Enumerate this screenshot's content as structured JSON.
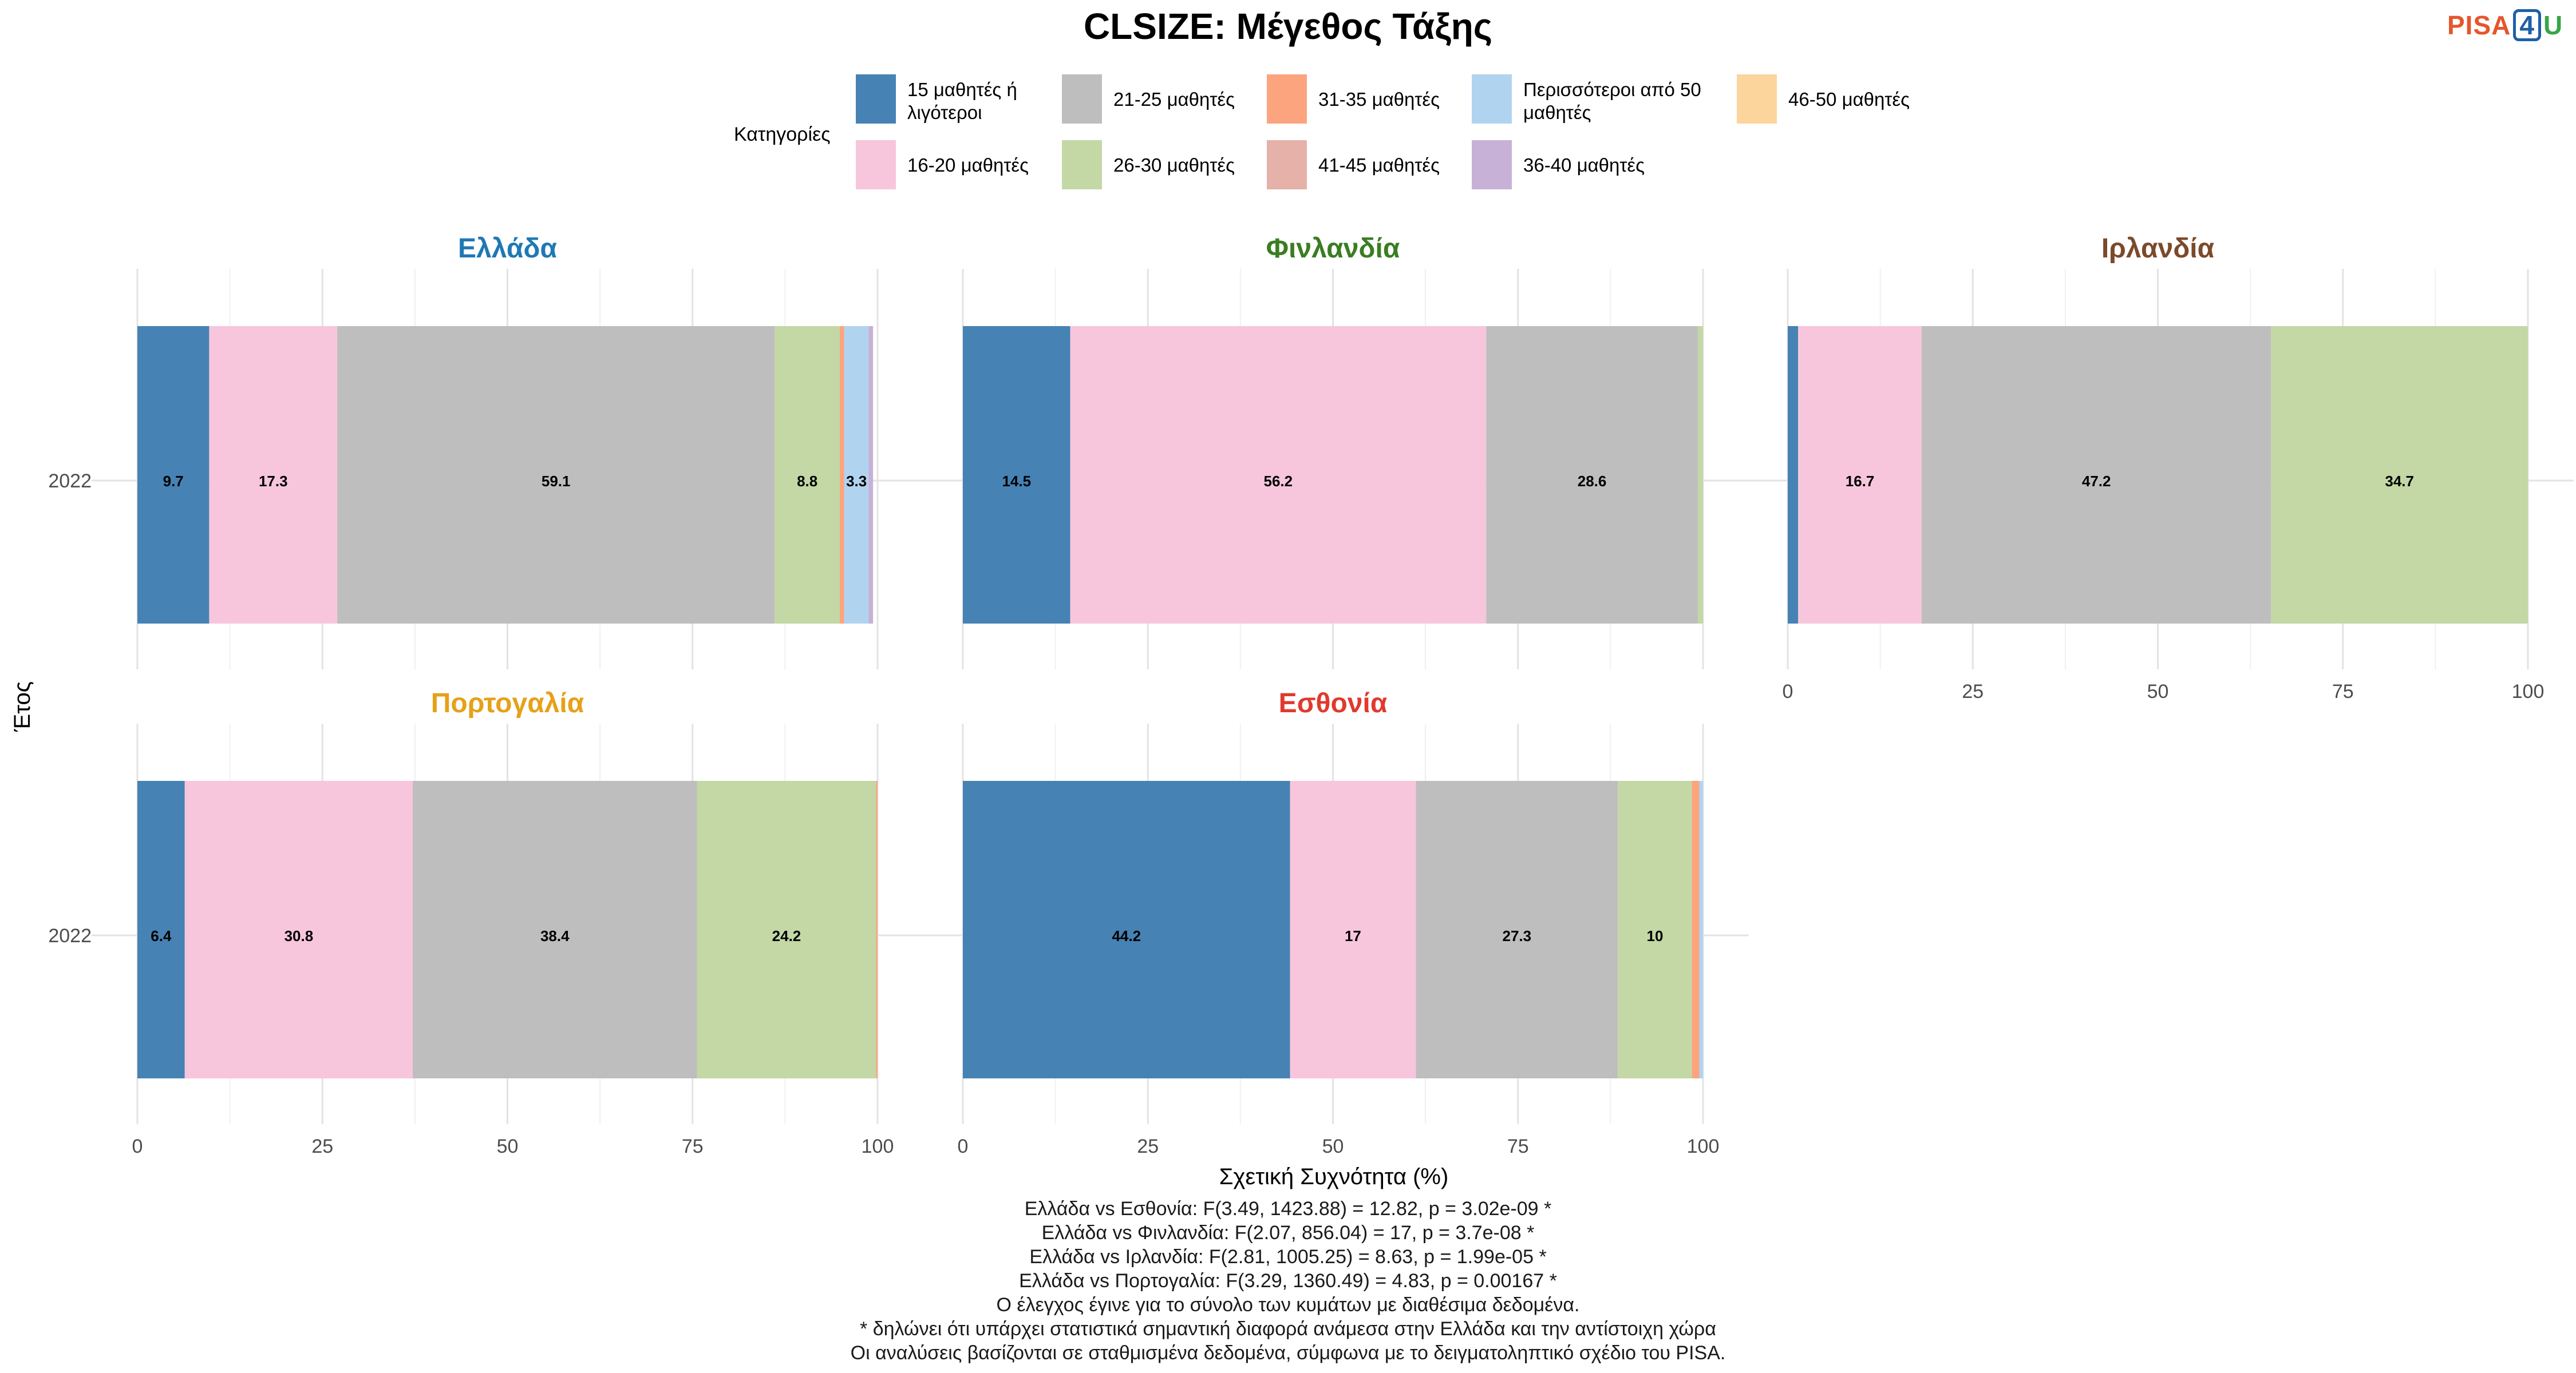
{
  "title": "CLSIZE: Μέγεθος Τάξης",
  "logo": {
    "p": "PISA",
    "four": "4",
    "u": "U"
  },
  "legend": {
    "title": "Κατηγορίες",
    "items": [
      {
        "label": [
          "15 μαθητές ή",
          "λιγότεροι"
        ],
        "color": "#4682b4"
      },
      {
        "label": [
          "21-25 μαθητές"
        ],
        "color": "#bebebe"
      },
      {
        "label": [
          "31-35 μαθητές"
        ],
        "color": "#fca47e"
      },
      {
        "label": [
          "Περισσότεροι από 50",
          "μαθητές"
        ],
        "color": "#b0d4f0"
      },
      {
        "label": [
          "46-50 μαθητές"
        ],
        "color": "#fbd59c"
      },
      {
        "label": [
          "16-20 μαθητές"
        ],
        "color": "#f7c6dc"
      },
      {
        "label": [
          "26-30 μαθητές"
        ],
        "color": "#c3d8a5"
      },
      {
        "label": [
          "41-45 μαθητές"
        ],
        "color": "#e5b1a8"
      },
      {
        "label": [
          "36-40 μαθητές"
        ],
        "color": "#c8b1d6"
      }
    ]
  },
  "chart_data": {
    "type": "bar",
    "orientation": "horizontal-stacked",
    "ylabel": "Έτος",
    "xlabel": "Σχετική Συχνότητα (%)",
    "xlim": [
      0,
      100
    ],
    "xticks": [
      0,
      25,
      50,
      75,
      100
    ],
    "grid": true,
    "legend_position": "top",
    "categories_order": [
      "15 μαθητές ή λιγότεροι",
      "16-20 μαθητές",
      "21-25 μαθητές",
      "26-30 μαθητές",
      "31-35 μαθητές",
      "Περισσότεροι από 50 μαθητές",
      "36-40 μαθητές"
    ],
    "panels": [
      {
        "country": "Ελλάδα",
        "color": "#1f78b4",
        "year": "2022",
        "segments": [
          {
            "category": "15 μαθητές ή λιγότεροι",
            "value": 9.7,
            "color": "#4682b4",
            "label": "9.7"
          },
          {
            "category": "16-20 μαθητές",
            "value": 17.3,
            "color": "#f7c6dc",
            "label": "17.3"
          },
          {
            "category": "21-25 μαθητές",
            "value": 59.1,
            "color": "#bebebe",
            "label": "59.1"
          },
          {
            "category": "26-30 μαθητές",
            "value": 8.8,
            "color": "#c3d8a5",
            "label": "8.8"
          },
          {
            "category": "31-35 μαθητές",
            "value": 0.6,
            "color": "#fca47e",
            "label": ""
          },
          {
            "category": "Περισσότεροι από 50 μαθητές",
            "value": 3.3,
            "color": "#b0d4f0",
            "label": "3.3"
          },
          {
            "category": "36-40 μαθητές",
            "value": 0.6,
            "color": "#c8b1d6",
            "label": ""
          }
        ]
      },
      {
        "country": "Φινλανδία",
        "color": "#3a7d22",
        "year": "2022",
        "segments": [
          {
            "category": "15 μαθητές ή λιγότεροι",
            "value": 14.5,
            "color": "#4682b4",
            "label": "14.5"
          },
          {
            "category": "16-20 μαθητές",
            "value": 56.2,
            "color": "#f7c6dc",
            "label": "56.2"
          },
          {
            "category": "21-25 μαθητές",
            "value": 28.6,
            "color": "#bebebe",
            "label": "28.6"
          },
          {
            "category": "26-30 μαθητές",
            "value": 0.7,
            "color": "#c3d8a5",
            "label": ""
          }
        ]
      },
      {
        "country": "Ιρλανδία",
        "color": "#7b4a2a",
        "year": "2022",
        "segments": [
          {
            "category": "15 μαθητές ή λιγότεροι",
            "value": 1.4,
            "color": "#4682b4",
            "label": ""
          },
          {
            "category": "16-20 μαθητές",
            "value": 16.7,
            "color": "#f7c6dc",
            "label": "16.7"
          },
          {
            "category": "21-25 μαθητές",
            "value": 47.2,
            "color": "#bebebe",
            "label": "47.2"
          },
          {
            "category": "26-30 μαθητές",
            "value": 34.7,
            "color": "#c3d8a5",
            "label": "34.7"
          }
        ]
      },
      {
        "country": "Πορτογαλία",
        "color": "#e6a118",
        "year": "2022",
        "segments": [
          {
            "category": "15 μαθητές ή λιγότεροι",
            "value": 6.4,
            "color": "#4682b4",
            "label": "6.4"
          },
          {
            "category": "16-20 μαθητές",
            "value": 30.8,
            "color": "#f7c6dc",
            "label": "30.8"
          },
          {
            "category": "21-25 μαθητές",
            "value": 38.4,
            "color": "#bebebe",
            "label": "38.4"
          },
          {
            "category": "26-30 μαθητές",
            "value": 24.2,
            "color": "#c3d8a5",
            "label": "24.2"
          },
          {
            "category": "31-35 μαθητές",
            "value": 0.2,
            "color": "#fca47e",
            "label": ""
          }
        ]
      },
      {
        "country": "Εσθονία",
        "color": "#e03a2e",
        "year": "2022",
        "segments": [
          {
            "category": "15 μαθητές ή λιγότεροι",
            "value": 44.2,
            "color": "#4682b4",
            "label": "44.2"
          },
          {
            "category": "16-20 μαθητές",
            "value": 17,
            "color": "#f7c6dc",
            "label": "17"
          },
          {
            "category": "21-25 μαθητές",
            "value": 27.3,
            "color": "#bebebe",
            "label": "27.3"
          },
          {
            "category": "26-30 μαθητές",
            "value": 10,
            "color": "#c3d8a5",
            "label": "10"
          },
          {
            "category": "31-35 μαθητές",
            "value": 1.0,
            "color": "#fca47e",
            "label": ""
          },
          {
            "category": "Περισσότεροι από 50 μαθητές",
            "value": 0.5,
            "color": "#b0d4f0",
            "label": ""
          }
        ]
      }
    ]
  },
  "footnotes": [
    "Ελλάδα vs Εσθονία: F(3.49, 1423.88) = 12.82, p = 3.02e-09 *",
    "Ελλάδα vs Φινλανδία: F(2.07, 856.04) = 17, p = 3.7e-08 *",
    "Ελλάδα vs Ιρλανδία: F(2.81, 1005.25) = 8.63, p = 1.99e-05 *",
    "Ελλάδα vs Πορτογαλία: F(3.29, 1360.49) = 4.83, p = 0.00167 *",
    "Ο έλεγχος έγινε για το σύνολο των κυμάτων με διαθέσιμα δεδομένα.",
    "* δηλώνει ότι υπάρχει στατιστικά σημαντική διαφορά ανάμεσα στην Ελλάδα και την αντίστοιχη χώρα",
    "Οι αναλύσεις βασίζονται σε σταθμισμένα δεδομένα, σύμφωνα με το δειγματοληπτικό σχέδιο του PISA."
  ]
}
